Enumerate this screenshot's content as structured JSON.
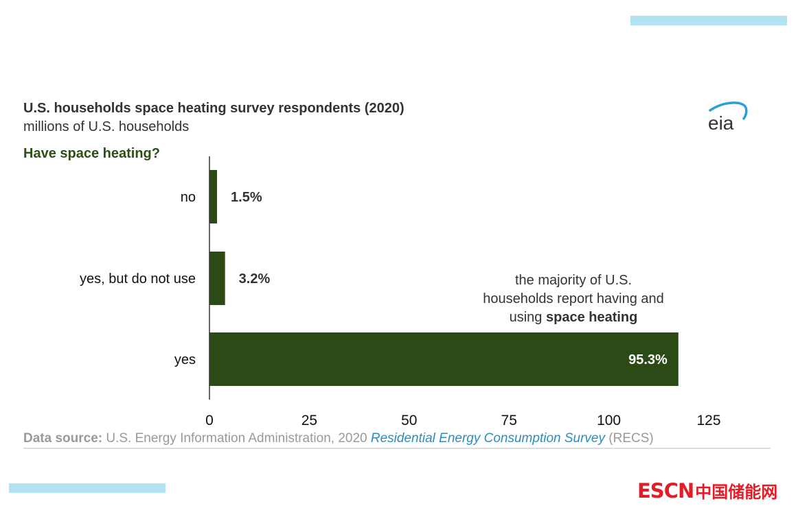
{
  "header": {
    "title": "U.S. households space heating survey respondents (2020)",
    "subtitle": "millions of U.S. households",
    "question_label": "Have space heating?"
  },
  "logos": {
    "eia": "eia",
    "escn_en": "ESCN",
    "escn_cn": "中国储能网"
  },
  "annotation": {
    "line1": "the majority of U.S.",
    "line2": "households report having and",
    "line3_prefix": "using ",
    "line3_bold": "space heating"
  },
  "source": {
    "label": "Data source:",
    "text": " U.S. Energy Information Administration, 2020 ",
    "link": "Residential Energy Consumption Survey",
    "suffix": " (RECS)"
  },
  "colors": {
    "bar": "#2b4a15",
    "accent_green": "#2b4f14",
    "link_blue": "#2b8cbf",
    "decor_cyan": "#b3e3f0",
    "brand_red": "#e41c25"
  },
  "chart_data": {
    "type": "bar",
    "orientation": "horizontal",
    "title": "U.S. households space heating survey respondents (2020)",
    "subtitle": "millions of U.S. households",
    "ylabel": "Have space heating?",
    "xlabel": "",
    "categories": [
      "no",
      "yes, but do not use",
      "yes"
    ],
    "values": [
      1.9,
      3.9,
      117.4
    ],
    "data_labels": [
      "1.5%",
      "3.2%",
      "95.3%"
    ],
    "xlim": [
      0,
      125
    ],
    "xticks": [
      0,
      25,
      50,
      75,
      100,
      125
    ],
    "grid": false,
    "legend": "none"
  }
}
